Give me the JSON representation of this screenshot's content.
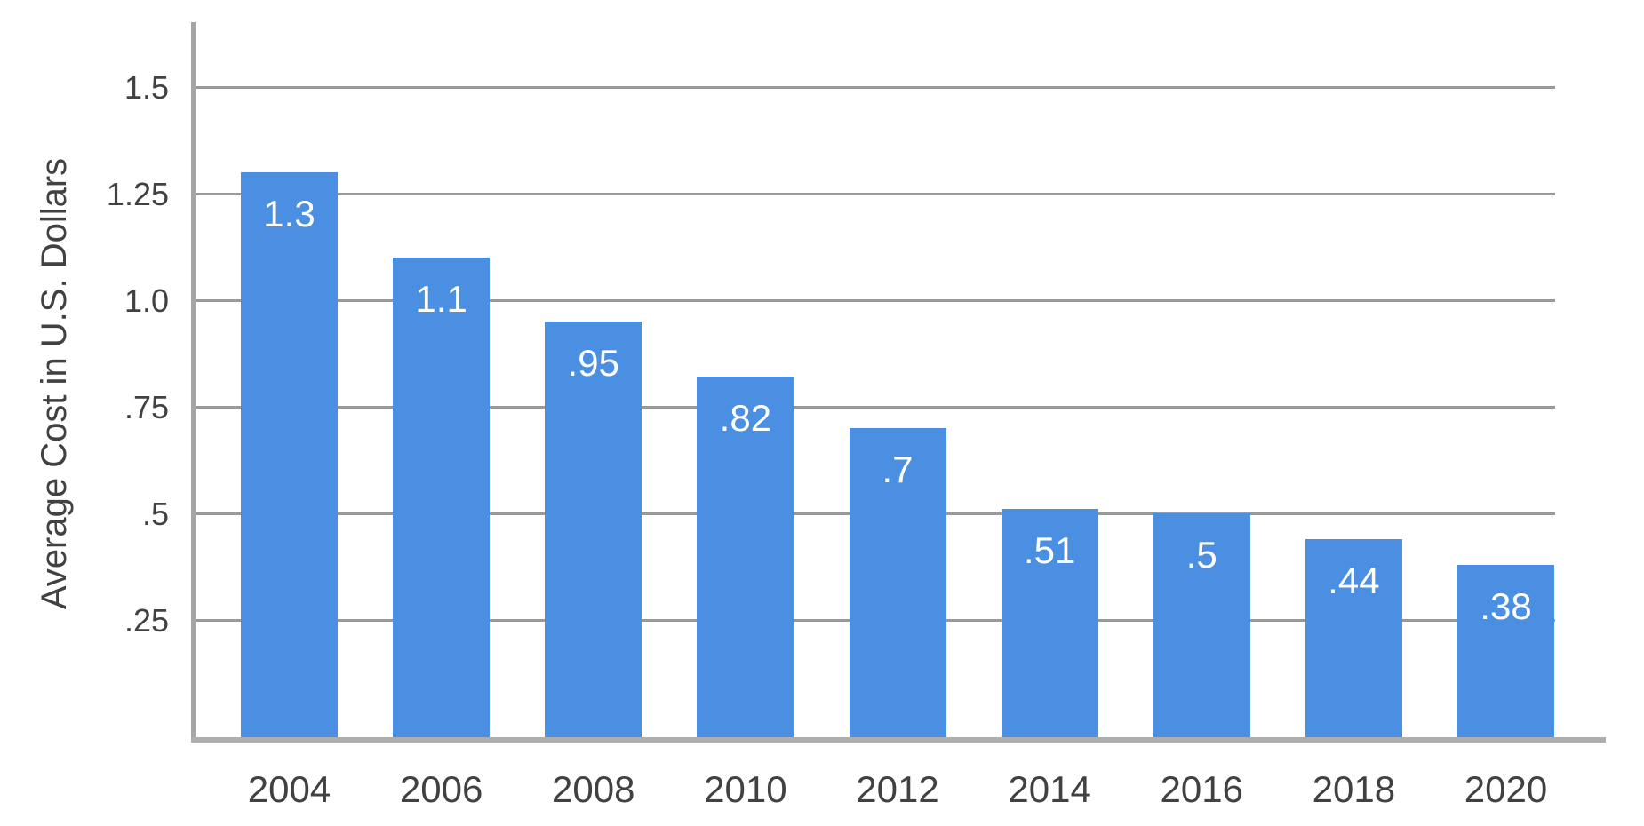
{
  "chart_data": {
    "type": "bar",
    "title": "",
    "categories": [
      "2004",
      "2006",
      "2008",
      "2010",
      "2012",
      "2014",
      "2016",
      "2018",
      "2020"
    ],
    "values": [
      1.3,
      1.1,
      0.95,
      0.82,
      0.7,
      0.51,
      0.5,
      0.44,
      0.38
    ],
    "bar_value_labels": [
      "1.3",
      "1.1",
      ".95",
      ".82",
      ".7",
      ".51",
      ".5",
      ".44",
      ".38"
    ],
    "xlabel": "",
    "ylabel": "Average Cost in U.S. Dollars",
    "y_tick_values": [
      1.5,
      1.25,
      1.0,
      0.75,
      0.5,
      0.25
    ],
    "y_tick_labels": [
      "1.5",
      "1.25",
      "1.0",
      ".75",
      ".5",
      ".25"
    ],
    "ylim": [
      0,
      1.65
    ],
    "grid": true,
    "legend": "none"
  },
  "colors": {
    "background": "#ffffff",
    "bar": "#4a8fe2",
    "gridline": "#999999",
    "axis_line": "#a6a6a6",
    "baseline": "#aeaeae",
    "tick_text": "#414141",
    "value_text": "#ffffff"
  }
}
